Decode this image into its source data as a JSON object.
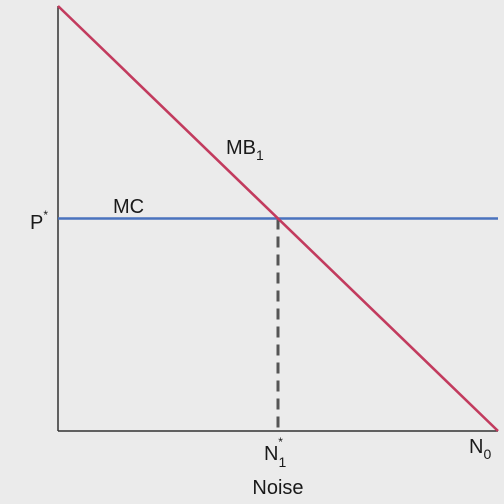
{
  "chart_data": {
    "type": "line",
    "xlabel": "Noise",
    "series": [
      {
        "name": "MB",
        "subscript": "1",
        "color": "#c23b5e",
        "points": [
          [
            0,
            10
          ],
          [
            10,
            0
          ]
        ]
      },
      {
        "name": "MC",
        "color": "#4a73be",
        "points": [
          [
            0,
            5
          ],
          [
            10,
            5
          ]
        ]
      }
    ],
    "equilibrium": {
      "x": 5,
      "y": 5
    },
    "x_ticks": [
      {
        "x": 5,
        "label": "N",
        "sub": "1",
        "sup": "*"
      },
      {
        "x": 10,
        "label": "N",
        "sub": "0",
        "sup": ""
      }
    ],
    "y_ticks": [
      {
        "y": 5,
        "label": "P",
        "sup": "*"
      }
    ],
    "xlim": [
      0,
      10
    ],
    "ylim": [
      0,
      10
    ],
    "grid": false,
    "colors": {
      "background": "#ebebeb",
      "axis": "#333333",
      "dashed": "#555555"
    }
  }
}
